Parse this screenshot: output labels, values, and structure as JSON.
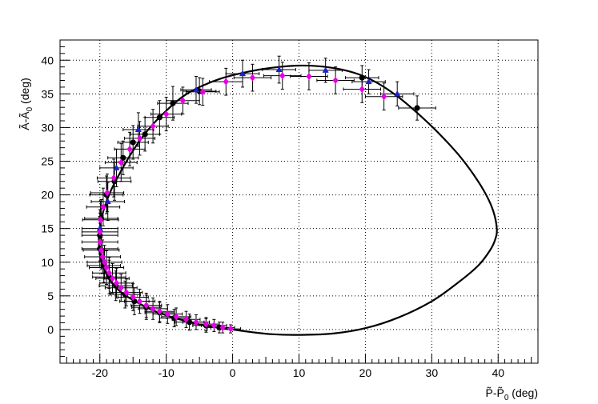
{
  "chart_data": {
    "type": "scatter",
    "title": "",
    "xlabel": "P̃-P̃₀ (deg)",
    "ylabel": "Ã-Ã₀ (deg)",
    "xlabel_parts": {
      "main": "P̃-P̃",
      "sub": "0",
      "unit": " (deg)"
    },
    "ylabel_parts": {
      "main": "Ã-Ã",
      "sub": "0",
      "unit": " (deg)"
    },
    "xlim": [
      -26,
      46
    ],
    "ylim": [
      -5,
      43
    ],
    "xticks": [
      -20,
      -10,
      0,
      10,
      20,
      30,
      40
    ],
    "yticks": [
      0,
      5,
      10,
      15,
      20,
      25,
      30,
      35,
      40
    ],
    "grid": true,
    "colors": {
      "curve": "#000000",
      "black_series": "#000000",
      "blue_series": "#1f1fcf",
      "magenta_series": "#e600e6",
      "errorbar": "#000000",
      "grid": "#000000"
    },
    "curve": {
      "name": "",
      "points": [
        [
          0,
          0
        ],
        [
          3,
          -0.4
        ],
        [
          6,
          -0.7
        ],
        [
          10,
          -0.8
        ],
        [
          15,
          -0.6
        ],
        [
          20,
          0.2
        ],
        [
          25,
          1.8
        ],
        [
          30,
          4.2
        ],
        [
          34,
          7
        ],
        [
          37,
          9.5
        ],
        [
          38.8,
          11.8
        ],
        [
          39.6,
          13.5
        ],
        [
          39.8,
          15
        ],
        [
          39.3,
          17.5
        ],
        [
          38.2,
          20
        ],
        [
          36.3,
          23
        ],
        [
          34,
          26
        ],
        [
          31,
          29.2
        ],
        [
          28,
          32
        ],
        [
          25,
          34.5
        ],
        [
          22,
          36.5
        ],
        [
          19,
          37.9
        ],
        [
          16,
          38.7
        ],
        [
          13,
          39.1
        ],
        [
          10,
          39.2
        ],
        [
          7,
          39
        ],
        [
          4,
          38.6
        ],
        [
          1,
          38
        ],
        [
          -2,
          37.2
        ],
        [
          -5,
          36
        ],
        [
          -7.5,
          34.6
        ],
        [
          -10,
          32.5
        ],
        [
          -12,
          30.5
        ],
        [
          -13.8,
          28.3
        ],
        [
          -15.5,
          25.8
        ],
        [
          -17,
          23.2
        ],
        [
          -18.4,
          20.5
        ],
        [
          -19.5,
          17.5
        ],
        [
          -20.1,
          14.5
        ],
        [
          -20.1,
          12
        ],
        [
          -19.7,
          10
        ],
        [
          -19,
          8.2
        ],
        [
          -18,
          6.7
        ],
        [
          -16.5,
          5.3
        ],
        [
          -14.5,
          4.1
        ],
        [
          -12.3,
          3
        ],
        [
          -10,
          2.1
        ],
        [
          -7.6,
          1.4
        ],
        [
          -5.2,
          0.8
        ],
        [
          -3,
          0.4
        ],
        [
          -1.5,
          0.15
        ],
        [
          0,
          0
        ]
      ]
    },
    "series": [
      {
        "marker": "circle",
        "color": "#000000",
        "points": [
          [
            27.8,
            32.9,
            2.8,
            1.8
          ],
          [
            19.5,
            37.4,
            2.5,
            1.8
          ],
          [
            -5,
            35.4,
            2.5,
            2
          ],
          [
            -9,
            33.6,
            2.3,
            2.5
          ],
          [
            -11,
            31.5,
            2.2,
            2.5
          ],
          [
            -13.2,
            29,
            2.2,
            2.5
          ],
          [
            -15,
            27.8,
            2.3,
            2.5
          ],
          [
            -16.5,
            25.5,
            2.3,
            2.5
          ],
          [
            -17.8,
            22,
            2.5,
            2.8
          ],
          [
            -19,
            20,
            2.5,
            2.8
          ],
          [
            -19.8,
            16.5,
            2.5,
            2.8
          ],
          [
            -20,
            14,
            2.7,
            2.8
          ],
          [
            -20,
            12,
            2.7,
            2.8
          ],
          [
            -19.4,
            9.5,
            2.5,
            2.5
          ],
          [
            -18.6,
            7.8,
            2.5,
            2.5
          ],
          [
            -17.6,
            6.5,
            2.5,
            2.2
          ],
          [
            -16.2,
            5.2,
            2.3,
            2
          ],
          [
            -14.8,
            4.2,
            2.2,
            2
          ],
          [
            -13,
            3.3,
            2.2,
            1.8
          ],
          [
            -11,
            2.5,
            2.2,
            1.5
          ],
          [
            -8.8,
            1.7,
            2.2,
            1.3
          ],
          [
            -6.5,
            1.1,
            2.2,
            1.2
          ],
          [
            -4,
            0.6,
            2,
            1
          ],
          [
            -2,
            0.3,
            1.8,
            0.8
          ]
        ]
      },
      {
        "marker": "triangle",
        "color": "#1f1fcf",
        "points": [
          [
            24.8,
            35,
            2.5,
            1.8
          ],
          [
            20.5,
            36.8,
            2.5,
            1.8
          ],
          [
            14,
            38.5,
            2.5,
            1.8
          ],
          [
            7,
            38.6,
            2.5,
            2
          ],
          [
            1.5,
            38,
            2.5,
            2
          ],
          [
            -5.5,
            35.6,
            2.3,
            2
          ],
          [
            -14.2,
            29.7,
            2.3,
            2.5
          ],
          [
            -17.5,
            24,
            2.5,
            2.8
          ],
          [
            -18.8,
            19,
            2.5,
            2.8
          ],
          [
            -20,
            15,
            2.7,
            2.8
          ]
        ]
      },
      {
        "marker": "diamond",
        "color": "#e600e6",
        "points": [
          [
            22.8,
            34.6,
            2.8,
            2
          ],
          [
            19.5,
            35.7,
            2.8,
            2
          ],
          [
            15.5,
            37,
            2.8,
            2
          ],
          [
            11.5,
            37.6,
            2.8,
            2
          ],
          [
            7.5,
            37.7,
            2.8,
            2
          ],
          [
            3,
            37.4,
            2.8,
            2
          ],
          [
            -1,
            36.8,
            2.5,
            2
          ],
          [
            -4.5,
            35.3,
            2.5,
            2
          ],
          [
            -7.5,
            34,
            2.5,
            2
          ],
          [
            -10,
            32,
            2.3,
            2.5
          ],
          [
            -12,
            30.2,
            2.3,
            2.5
          ],
          [
            -14,
            28.4,
            2.3,
            2.5
          ],
          [
            -15.5,
            26.8,
            2.3,
            2.5
          ],
          [
            -16.8,
            24.8,
            2.4,
            2.8
          ],
          [
            -17.9,
            22.5,
            2.5,
            2.8
          ],
          [
            -18.9,
            20.3,
            2.5,
            2.8
          ],
          [
            -19.5,
            18.2,
            2.5,
            2.8
          ],
          [
            -19.9,
            16.3,
            2.7,
            2.8
          ],
          [
            -20,
            14.5,
            2.7,
            2.8
          ],
          [
            -20,
            13,
            2.7,
            2.8
          ],
          [
            -19.8,
            11.8,
            2.7,
            2.8
          ],
          [
            -19.6,
            10.8,
            2.7,
            2.5
          ],
          [
            -19.3,
            10,
            2.6,
            2.5
          ],
          [
            -19,
            9.2,
            2.6,
            2.5
          ],
          [
            -18.6,
            8.4,
            2.5,
            2.3
          ],
          [
            -18.1,
            7.6,
            2.5,
            2.2
          ],
          [
            -17.5,
            6.9,
            2.5,
            2.2
          ],
          [
            -16.8,
            6.2,
            2.4,
            2
          ],
          [
            -16,
            5.5,
            2.4,
            2
          ],
          [
            -15,
            4.8,
            2.3,
            2
          ],
          [
            -14,
            4.2,
            2.3,
            1.8
          ],
          [
            -13,
            3.6,
            2.3,
            1.8
          ],
          [
            -12,
            3.1,
            2.2,
            1.6
          ],
          [
            -11,
            2.7,
            2.2,
            1.5
          ],
          [
            -9.8,
            2.3,
            2.2,
            1.4
          ],
          [
            -8.5,
            1.9,
            2.2,
            1.3
          ],
          [
            -7,
            1.5,
            2.1,
            1.2
          ],
          [
            -5.5,
            1.1,
            2,
            1.1
          ],
          [
            -4,
            0.8,
            2,
            1
          ],
          [
            -2.8,
            0.6,
            1.9,
            0.9
          ],
          [
            -1.5,
            0.3,
            1.8,
            0.8
          ],
          [
            -0.3,
            0.1,
            1.5,
            0.6
          ]
        ]
      }
    ]
  }
}
